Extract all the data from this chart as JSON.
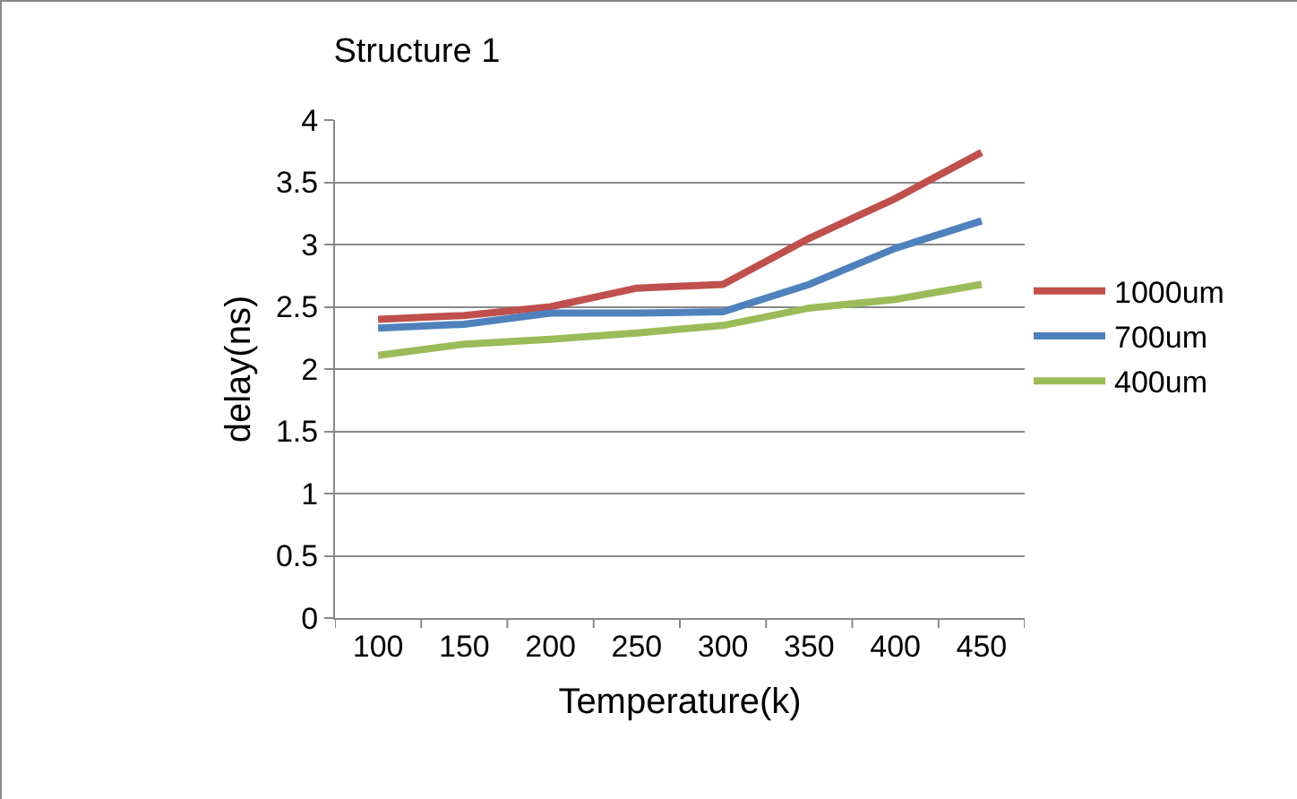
{
  "chart_data": {
    "type": "line",
    "title": "Structure 1",
    "xlabel": "Temperature(k)",
    "ylabel": "delay(ns)",
    "categories": [
      "100",
      "150",
      "200",
      "250",
      "300",
      "350",
      "400",
      "450"
    ],
    "series": [
      {
        "name": "1000um",
        "color": "#c0504d",
        "values": [
          2.4,
          2.43,
          2.5,
          2.65,
          2.68,
          3.05,
          3.37,
          3.74
        ]
      },
      {
        "name": "700um",
        "color": "#4f81bd",
        "values": [
          2.33,
          2.36,
          2.45,
          2.45,
          2.46,
          2.68,
          2.97,
          3.19
        ]
      },
      {
        "name": "400um",
        "color": "#9bbb59",
        "values": [
          2.11,
          2.2,
          2.24,
          2.29,
          2.35,
          2.49,
          2.56,
          2.68
        ]
      }
    ],
    "ylim": [
      0,
      4
    ],
    "yticks": [
      0,
      0.5,
      1,
      1.5,
      2,
      2.5,
      3,
      3.5,
      4
    ],
    "grid": "y",
    "legend": "right",
    "marker": "none",
    "line_style": "solid"
  }
}
